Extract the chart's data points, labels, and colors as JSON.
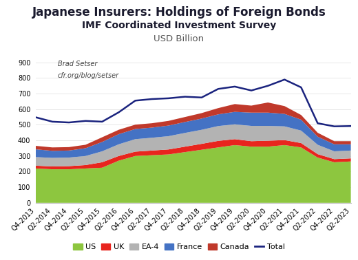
{
  "title": "Japanese Insurers: Holdings of Foreign Bonds",
  "subtitle": "IMF Coordinated Investment Survey",
  "ylabel": "USD Billion",
  "annotation_line1": "Brad Setser",
  "annotation_line2": "cfr.org/blog/setser",
  "ylim": [
    0,
    950
  ],
  "yticks": [
    0,
    100,
    200,
    300,
    400,
    500,
    600,
    700,
    800,
    900
  ],
  "labels": [
    "Q4-2013",
    "Q2-2014",
    "Q4-2014",
    "Q2-2015",
    "Q4-2015",
    "Q2-2016",
    "Q4-2016",
    "Q2-2017",
    "Q4-2017",
    "Q2-2018",
    "Q4-2018",
    "Q2-2019",
    "Q4-2019",
    "Q2-2020",
    "Q4-2020",
    "Q2-2021",
    "Q4-2021",
    "Q2-2022",
    "Q4-2022",
    "Q2-2023"
  ],
  "US": [
    220,
    215,
    215,
    220,
    225,
    270,
    300,
    305,
    310,
    325,
    340,
    355,
    370,
    360,
    360,
    370,
    355,
    290,
    260,
    265
  ],
  "UK": [
    18,
    18,
    20,
    22,
    35,
    30,
    28,
    30,
    32,
    35,
    38,
    42,
    38,
    35,
    38,
    32,
    28,
    22,
    20,
    20
  ],
  "EA4": [
    55,
    55,
    55,
    58,
    70,
    75,
    80,
    82,
    85,
    88,
    90,
    95,
    95,
    98,
    95,
    88,
    80,
    60,
    50,
    50
  ],
  "France": [
    50,
    45,
    45,
    50,
    60,
    65,
    65,
    65,
    68,
    70,
    72,
    75,
    80,
    85,
    85,
    80,
    70,
    52,
    45,
    40
  ],
  "Canada": [
    22,
    22,
    22,
    22,
    30,
    28,
    28,
    28,
    30,
    32,
    35,
    40,
    50,
    45,
    65,
    50,
    30,
    25,
    20,
    20
  ],
  "Total": [
    548,
    520,
    515,
    525,
    520,
    580,
    655,
    665,
    670,
    680,
    675,
    730,
    745,
    720,
    750,
    790,
    740,
    510,
    490,
    492
  ],
  "colors": {
    "US": "#8dc63f",
    "UK": "#e8251e",
    "EA4": "#b3b3b3",
    "France": "#4472c4",
    "Canada": "#c0392b",
    "Total": "#1a237e"
  },
  "title_fontsize": 12,
  "subtitle_fontsize": 10,
  "ylabel_fontsize": 9.5,
  "tick_fontsize": 7,
  "legend_fontsize": 8,
  "annotation_fontsize": 7,
  "background_color": "#ffffff"
}
